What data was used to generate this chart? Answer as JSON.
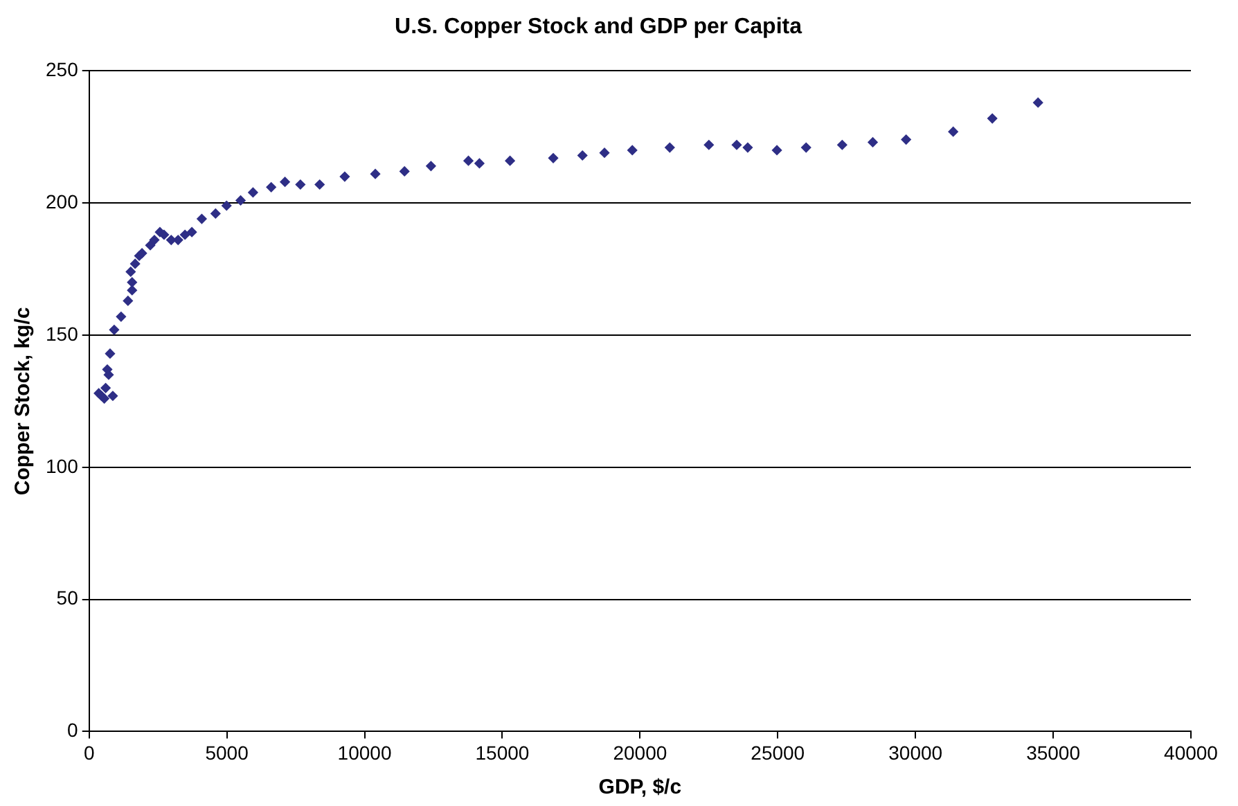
{
  "chart_data": {
    "type": "scatter",
    "title": "U.S. Copper Stock and GDP per Capita",
    "xlabel": "GDP, $/c",
    "ylabel": "Copper Stock, kg/c",
    "x": [
      350,
      450,
      550,
      600,
      660,
      710,
      760,
      860,
      910,
      1160,
      1410,
      1560,
      1560,
      1510,
      1670,
      1820,
      1920,
      2220,
      2370,
      2570,
      2720,
      2980,
      3230,
      3480,
      3730,
      4090,
      4590,
      4990,
      5500,
      5950,
      6610,
      7110,
      7670,
      8370,
      9280,
      10390,
      11450,
      12410,
      13770,
      14170,
      15280,
      16850,
      17910,
      18710,
      19720,
      21080,
      22500,
      23510,
      23910,
      24970,
      26030,
      27340,
      28450,
      29660,
      31370,
      32790,
      34450
    ],
    "series": [
      {
        "color": "#2e2e86",
        "values": [
          128,
          127,
          126,
          130,
          137,
          135,
          143,
          127,
          152,
          157,
          163,
          167,
          170,
          174,
          177,
          180,
          181,
          184,
          186,
          189,
          188,
          186,
          186,
          188,
          189,
          194,
          196,
          199,
          201,
          204,
          206,
          208,
          207,
          207,
          210,
          211,
          212,
          214,
          216,
          215,
          216,
          217,
          218,
          219,
          220,
          221,
          222,
          222,
          221,
          220,
          221,
          222,
          223,
          224,
          227,
          232,
          238
        ]
      }
    ],
    "xlim": [
      0,
      40000
    ],
    "xticks": [
      0,
      5000,
      10000,
      15000,
      20000,
      25000,
      30000,
      35000,
      40000
    ],
    "ylim": [
      0,
      250
    ],
    "yticks": [
      0,
      50,
      100,
      150,
      200,
      250
    ],
    "grid": "y",
    "legend": false,
    "marker": "diamond"
  }
}
